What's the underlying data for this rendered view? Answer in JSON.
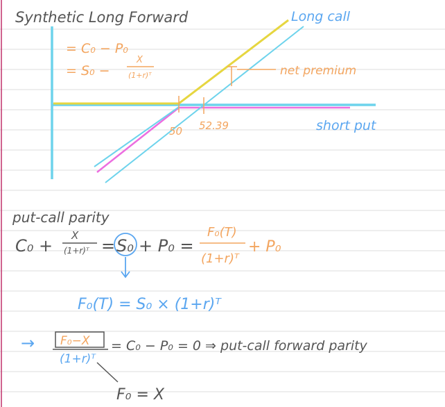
{
  "notes": {
    "title": "Synthetic Long Forward",
    "eq1": "= C₀ − P₀",
    "eq2_left": "= S₀ −",
    "eq2_num": "X",
    "eq2_den": "(1+r)ᵀ"
  },
  "payoff_diagram": {
    "long_call_label": "Long call",
    "net_premium_label": "net premium",
    "short_put_label": "short put",
    "strike_label": "50",
    "breakeven_label": "52.39",
    "colors": {
      "axis": "#6dd3ec",
      "long_call": "#e6d640",
      "short_put": "#ec6ee0",
      "synthetic": "#6dd3ec",
      "annotation": "#f3a55f",
      "label_blue": "#5aa6f0"
    }
  },
  "parity": {
    "heading": "put-call parity",
    "lhs_c": "C₀ +",
    "lhs_frac_num": "X",
    "lhs_frac_den": "(1+r)ᵀ",
    "eq_sign": "=",
    "s0": "S₀",
    "plus_p": "+ P₀ =",
    "f_num": "F₀(T)",
    "f_den": "(1+r)ᵀ",
    "plus_p2": "+ P₀",
    "forward_eq": "F₀(T) = S₀ × (1+r)ᵀ",
    "arrow": "→",
    "box_frac_num": "F₀−X",
    "box_frac_den": "(1+r)ᵀ",
    "result": "= C₀ − P₀ = 0  ⇒  put-call forward parity",
    "conclusion": "F₀ = X"
  }
}
